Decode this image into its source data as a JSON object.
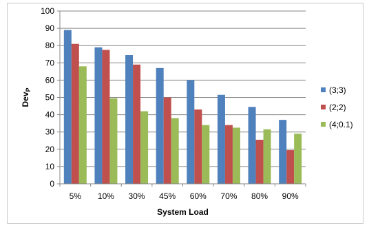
{
  "chart_data": {
    "type": "bar",
    "xlabel": "System Load",
    "ylabel_main": "Dev",
    "ylabel_sub": "P",
    "ylim": [
      0,
      100
    ],
    "ytick_step": 10,
    "grid": true,
    "legend_position": "right",
    "categories": [
      "5%",
      "10%",
      "30%",
      "45%",
      "60%",
      "70%",
      "80%",
      "90%"
    ],
    "series": [
      {
        "name": "(3;3)",
        "color": "#4f81bd",
        "values": [
          89,
          79,
          74.5,
          67,
          60,
          51.5,
          44.5,
          37
        ]
      },
      {
        "name": "(2;2)",
        "color": "#c0504d",
        "values": [
          81,
          77.5,
          69,
          50,
          43,
          34,
          25.5,
          19.5
        ]
      },
      {
        "name": "(4;0.1)",
        "color": "#9bbb59",
        "values": [
          68,
          49.5,
          42,
          38,
          34,
          32.5,
          31.5,
          29
        ]
      }
    ]
  }
}
